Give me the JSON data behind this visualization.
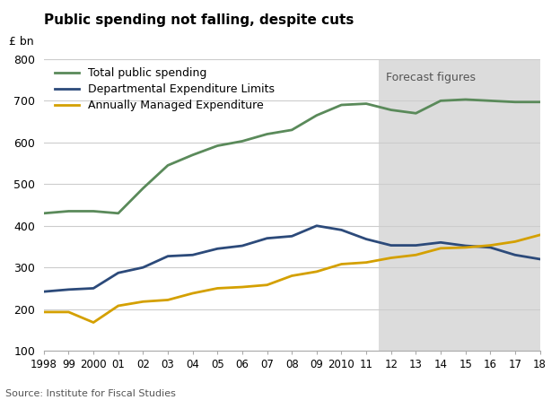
{
  "title": "Public spending not falling, despite cuts",
  "ylabel": "£ bn",
  "source": "Source: Institute for Fiscal Studies",
  "forecast_label": "Forecast figures",
  "forecast_start": 2011.5,
  "xlim": [
    1998,
    2018
  ],
  "ylim": [
    100,
    800
  ],
  "yticks": [
    100,
    200,
    300,
    400,
    500,
    600,
    700,
    800
  ],
  "xtick_values": [
    1998,
    1999,
    2000,
    2001,
    2002,
    2003,
    2004,
    2005,
    2006,
    2007,
    2008,
    2009,
    2010,
    2011,
    2012,
    2013,
    2014,
    2015,
    2016,
    2017,
    2018
  ],
  "xtick_labels": [
    "1998",
    "99",
    "2000",
    "01",
    "02",
    "03",
    "04",
    "05",
    "06",
    "07",
    "08",
    "09",
    "2010",
    "11",
    "12",
    "13",
    "14",
    "15",
    "16",
    "17",
    "18"
  ],
  "background_color": "#ffffff",
  "forecast_bg_color": "#dcdcdc",
  "grid_color": "#cccccc",
  "series": [
    {
      "label": "Total public spending",
      "color": "#5a8a5a",
      "linewidth": 2.0,
      "x": [
        1998,
        1999,
        2000,
        2001,
        2002,
        2003,
        2004,
        2005,
        2006,
        2007,
        2008,
        2009,
        2010,
        2011,
        2012,
        2013,
        2014,
        2015,
        2016,
        2017,
        2018
      ],
      "y": [
        430,
        435,
        435,
        430,
        490,
        545,
        570,
        592,
        603,
        620,
        630,
        665,
        690,
        693,
        678,
        670,
        700,
        703,
        700,
        697,
        697
      ]
    },
    {
      "label": "Departmental Expenditure Limits",
      "color": "#2c4a7a",
      "linewidth": 2.0,
      "x": [
        1998,
        1999,
        2000,
        2001,
        2002,
        2003,
        2004,
        2005,
        2006,
        2007,
        2008,
        2009,
        2010,
        2011,
        2012,
        2013,
        2014,
        2015,
        2016,
        2017,
        2018
      ],
      "y": [
        242,
        247,
        250,
        287,
        300,
        327,
        330,
        345,
        352,
        370,
        375,
        400,
        390,
        368,
        353,
        353,
        360,
        352,
        348,
        330,
        320
      ]
    },
    {
      "label": "Annually Managed Expenditure",
      "color": "#d4a000",
      "linewidth": 2.0,
      "x": [
        1998,
        1999,
        2000,
        2001,
        2002,
        2003,
        2004,
        2005,
        2006,
        2007,
        2008,
        2009,
        2010,
        2011,
        2012,
        2013,
        2014,
        2015,
        2016,
        2017,
        2018
      ],
      "y": [
        193,
        193,
        168,
        208,
        218,
        222,
        238,
        250,
        253,
        258,
        280,
        290,
        308,
        312,
        323,
        330,
        346,
        348,
        353,
        362,
        378
      ]
    }
  ]
}
